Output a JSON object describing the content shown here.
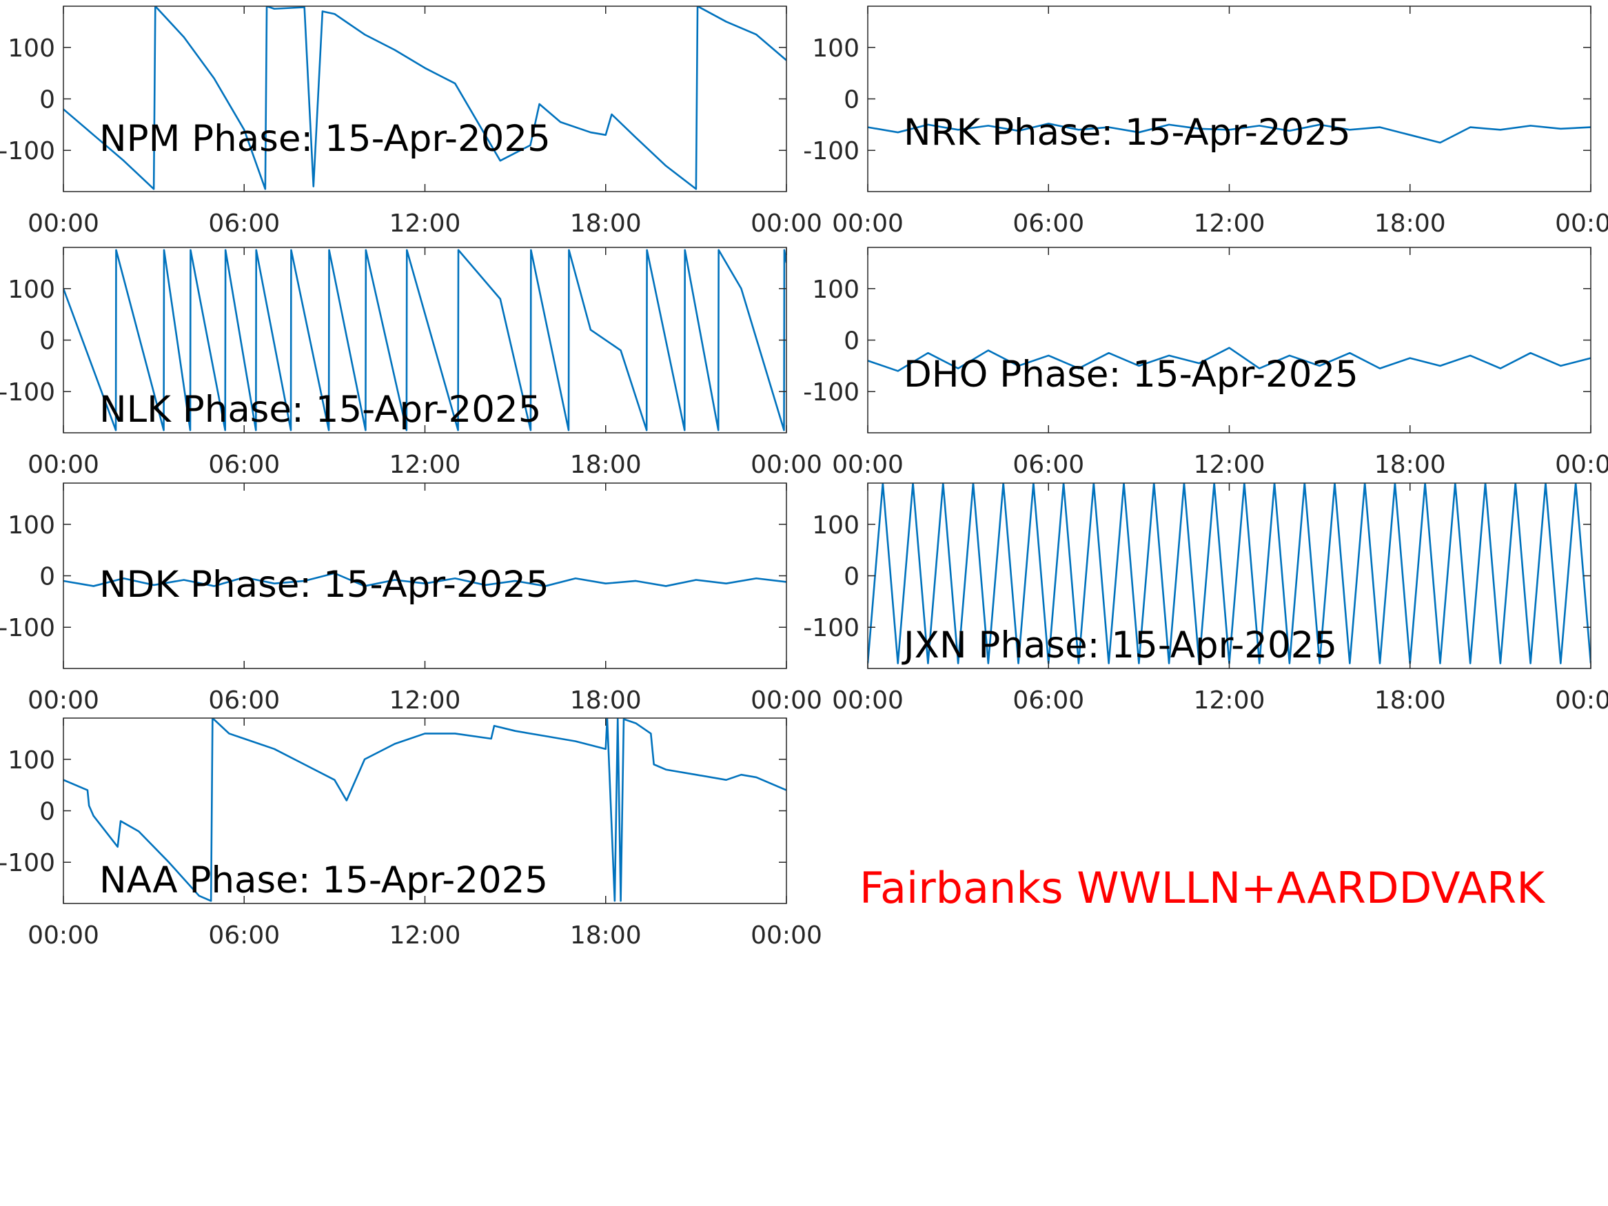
{
  "chart_data": [
    {
      "type": "line",
      "title": "NPM Phase: 15-Apr-2025",
      "color": "#0072bd",
      "x": [
        0,
        1,
        2,
        3,
        3.05,
        4,
        5,
        6,
        6.7,
        6.75,
        7,
        8,
        8.3,
        8.6,
        9,
        10,
        11,
        12,
        13,
        13.5,
        14.5,
        15.5,
        15.8,
        16.5,
        17.5,
        18,
        18.2,
        19,
        20,
        21,
        21.05,
        22,
        23,
        24
      ],
      "values": [
        -20,
        -70,
        -120,
        -175,
        180,
        120,
        40,
        -60,
        -175,
        180,
        175,
        178,
        -170,
        170,
        165,
        125,
        95,
        60,
        30,
        -20,
        -120,
        -90,
        -10,
        -45,
        -65,
        -70,
        -30,
        -75,
        -130,
        -175,
        180,
        150,
        125,
        75
      ],
      "xlim": [
        0,
        24
      ],
      "xticks": [
        {
          "value": 0,
          "label": "00:00"
        },
        {
          "value": 6,
          "label": "06:00"
        },
        {
          "value": 12,
          "label": "12:00"
        },
        {
          "value": 18,
          "label": "18:00"
        },
        {
          "value": 24,
          "label": "00:00"
        }
      ],
      "ylim": [
        -180,
        180
      ],
      "yticks": [
        -100,
        0,
        100
      ]
    },
    {
      "type": "line",
      "title": "NRK Phase: 15-Apr-2025",
      "color": "#0072bd",
      "x": [
        0,
        1,
        2,
        3,
        4,
        5,
        6,
        7,
        8,
        9,
        10,
        11,
        12,
        13,
        14,
        15,
        16,
        17,
        18,
        19,
        20,
        21,
        22,
        23,
        24
      ],
      "values": [
        -55,
        -65,
        -50,
        -60,
        -52,
        -62,
        -48,
        -60,
        -55,
        -65,
        -50,
        -58,
        -60,
        -52,
        -62,
        -50,
        -60,
        -55,
        -70,
        -85,
        -55,
        -60,
        -52,
        -58,
        -55
      ],
      "xlim": [
        0,
        24
      ],
      "xticks": [
        {
          "value": 0,
          "label": "00:00"
        },
        {
          "value": 6,
          "label": "06:00"
        },
        {
          "value": 12,
          "label": "12:00"
        },
        {
          "value": 18,
          "label": "18:00"
        },
        {
          "value": 24,
          "label": "00:00"
        }
      ],
      "ylim": [
        -180,
        180
      ],
      "yticks": [
        -100,
        0,
        100
      ]
    },
    {
      "type": "line",
      "title": "NLK Phase: 15-Apr-2025",
      "color": "#0072bd",
      "x": [
        0,
        1.74,
        1.75,
        3.33,
        3.34,
        4.21,
        4.22,
        5.37,
        5.38,
        6.39,
        6.4,
        7.55,
        7.56,
        8.81,
        8.82,
        10.03,
        10.04,
        11.39,
        11.4,
        13.1,
        13.11,
        14.5,
        15.51,
        15.52,
        16.77,
        16.78,
        17.5,
        18.5,
        19.36,
        19.37,
        20.62,
        20.63,
        21.74,
        21.75,
        22.5,
        23.92,
        23.93,
        24
      ],
      "values": [
        100,
        -175,
        175,
        -175,
        175,
        -175,
        175,
        -175,
        175,
        -175,
        175,
        -175,
        175,
        -175,
        175,
        -175,
        175,
        -175,
        175,
        -175,
        175,
        80,
        -175,
        175,
        -175,
        175,
        20,
        -20,
        -175,
        175,
        -175,
        175,
        -175,
        175,
        100,
        -175,
        175,
        150
      ],
      "xlim": [
        0,
        24
      ],
      "xticks": [
        {
          "value": 0,
          "label": "00:00"
        },
        {
          "value": 6,
          "label": "06:00"
        },
        {
          "value": 12,
          "label": "12:00"
        },
        {
          "value": 18,
          "label": "18:00"
        },
        {
          "value": 24,
          "label": "00:00"
        }
      ],
      "ylim": [
        -180,
        180
      ],
      "yticks": [
        -100,
        0,
        100
      ]
    },
    {
      "type": "line",
      "title": "DHO Phase: 15-Apr-2025",
      "color": "#0072bd",
      "x": [
        0,
        1,
        2,
        3,
        4,
        5,
        6,
        7,
        8,
        9,
        10,
        11,
        12,
        13,
        14,
        15,
        16,
        17,
        18,
        19,
        20,
        21,
        22,
        23,
        24
      ],
      "values": [
        -40,
        -60,
        -25,
        -55,
        -20,
        -50,
        -30,
        -55,
        -25,
        -50,
        -30,
        -45,
        -15,
        -55,
        -30,
        -50,
        -25,
        -55,
        -35,
        -50,
        -30,
        -55,
        -25,
        -50,
        -35
      ],
      "xlim": [
        0,
        24
      ],
      "xticks": [
        {
          "value": 0,
          "label": "00:00"
        },
        {
          "value": 6,
          "label": "06:00"
        },
        {
          "value": 12,
          "label": "12:00"
        },
        {
          "value": 18,
          "label": "18:00"
        },
        {
          "value": 24,
          "label": "00:00"
        }
      ],
      "ylim": [
        -180,
        180
      ],
      "yticks": [
        -100,
        0,
        100
      ]
    },
    {
      "type": "line",
      "title": "NDK Phase: 15-Apr-2025",
      "color": "#0072bd",
      "x": [
        0,
        1,
        2,
        3,
        4,
        5,
        6,
        7,
        8,
        9,
        10,
        11,
        12,
        13,
        14,
        15,
        16,
        17,
        18,
        19,
        20,
        21,
        22,
        23,
        24
      ],
      "values": [
        -10,
        -20,
        -5,
        -18,
        -8,
        -20,
        -3,
        -15,
        -10,
        5,
        -20,
        -8,
        -15,
        -5,
        -18,
        -10,
        -20,
        -5,
        -15,
        -10,
        -20,
        -8,
        -15,
        -5,
        -12
      ],
      "xlim": [
        0,
        24
      ],
      "xticks": [
        {
          "value": 0,
          "label": "00:00"
        },
        {
          "value": 6,
          "label": "06:00"
        },
        {
          "value": 12,
          "label": "12:00"
        },
        {
          "value": 18,
          "label": "18:00"
        },
        {
          "value": 24,
          "label": "00:00"
        }
      ],
      "ylim": [
        -180,
        180
      ],
      "yticks": [
        -100,
        0,
        100
      ]
    },
    {
      "type": "line",
      "title": "JXN Phase: 15-Apr-2025",
      "color": "#0072bd",
      "x": [
        0,
        0.5,
        1,
        1.5,
        2,
        2.5,
        3,
        3.5,
        4,
        4.5,
        5,
        5.5,
        6,
        6.5,
        7,
        7.5,
        8,
        8.5,
        9,
        9.5,
        10,
        10.5,
        11,
        11.5,
        12,
        12.5,
        13,
        13.5,
        14,
        14.5,
        15,
        15.5,
        16,
        16.5,
        17,
        17.5,
        18,
        18.5,
        19,
        19.5,
        20,
        20.5,
        21,
        21.5,
        22,
        22.5,
        23,
        23.5,
        24
      ],
      "values": [
        -170,
        180,
        -170,
        180,
        -170,
        180,
        -170,
        180,
        -170,
        180,
        -170,
        180,
        -170,
        180,
        -170,
        180,
        -170,
        180,
        -170,
        180,
        -170,
        180,
        -170,
        180,
        -170,
        180,
        -170,
        180,
        -170,
        180,
        -170,
        180,
        -170,
        180,
        -170,
        180,
        -170,
        180,
        -170,
        180,
        -170,
        180,
        -170,
        180,
        -170,
        180,
        -170,
        180,
        -170
      ],
      "xlim": [
        0,
        24
      ],
      "xticks": [
        {
          "value": 0,
          "label": "00:00"
        },
        {
          "value": 6,
          "label": "06:00"
        },
        {
          "value": 12,
          "label": "12:00"
        },
        {
          "value": 18,
          "label": "18:00"
        },
        {
          "value": 24,
          "label": "00:00"
        }
      ],
      "ylim": [
        -180,
        180
      ],
      "yticks": [
        -100,
        0,
        100
      ]
    },
    {
      "type": "line",
      "title": "NAA Phase: 15-Apr-2025",
      "color": "#0072bd",
      "x": [
        0,
        0.8,
        0.85,
        1,
        1.8,
        1.9,
        2.5,
        3.5,
        4.5,
        4.9,
        4.95,
        5.5,
        6,
        7,
        8,
        9,
        9.4,
        10,
        11,
        12,
        13,
        14.2,
        14.3,
        15,
        16,
        17,
        18,
        18.05,
        18.3,
        18.4,
        18.5,
        18.6,
        19,
        19.5,
        19.6,
        20,
        21,
        22,
        22.5,
        23,
        24
      ],
      "values": [
        60,
        40,
        10,
        -10,
        -70,
        -20,
        -40,
        -100,
        -165,
        -175,
        180,
        150,
        140,
        120,
        90,
        60,
        20,
        100,
        130,
        150,
        150,
        140,
        165,
        155,
        145,
        135,
        120,
        180,
        -175,
        180,
        -175,
        178,
        170,
        150,
        90,
        80,
        70,
        60,
        70,
        65,
        40
      ],
      "xlim": [
        0,
        24
      ],
      "xticks": [
        {
          "value": 0,
          "label": "00:00"
        },
        {
          "value": 6,
          "label": "06:00"
        },
        {
          "value": 12,
          "label": "12:00"
        },
        {
          "value": 18,
          "label": "18:00"
        },
        {
          "value": 24,
          "label": "00:00"
        }
      ],
      "ylim": [
        -180,
        180
      ],
      "yticks": [
        -100,
        0,
        100
      ]
    }
  ],
  "annotation": "Fairbanks WWLLN+AARDDVARK"
}
